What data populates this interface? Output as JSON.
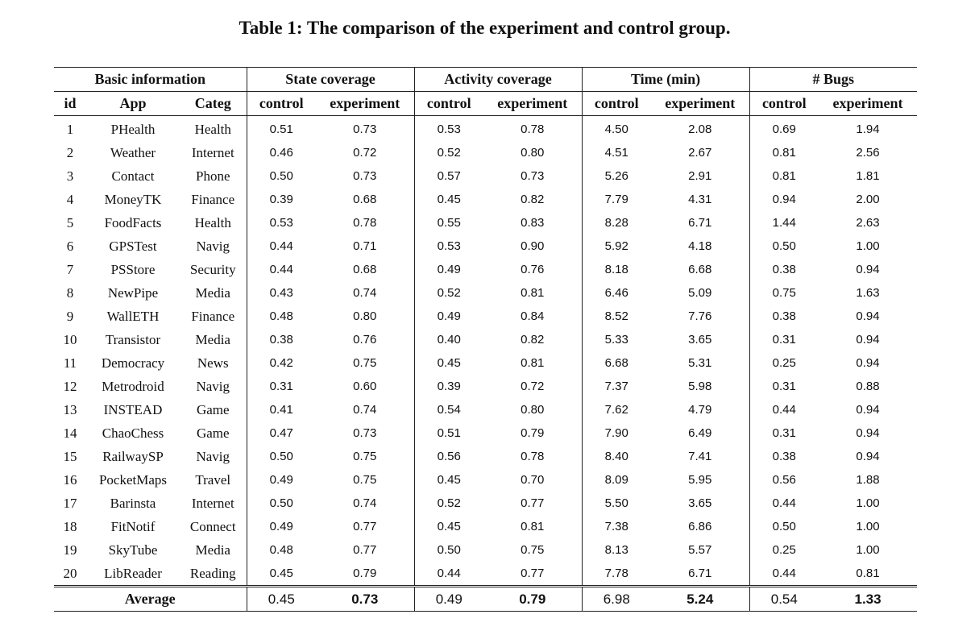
{
  "caption": "Table 1: The comparison of the experiment and control group.",
  "group_headers": {
    "basic": "Basic information",
    "state": "State coverage",
    "activity": "Activity coverage",
    "time": "Time (min)",
    "bugs": "# Bugs"
  },
  "sub_headers": {
    "id": "id",
    "app": "App",
    "categ": "Categ",
    "state_control": "control",
    "state_experiment": "experiment",
    "activity_control": "control",
    "activity_experiment": "experiment",
    "time_control": "control",
    "time_experiment": "experiment",
    "bugs_control": "control",
    "bugs_experiment": "experiment"
  },
  "rows": [
    {
      "id": "1",
      "app": "PHealth",
      "categ": "Health",
      "sc": "0.51",
      "se": "0.73",
      "ac": "0.53",
      "ae": "0.78",
      "tc": "4.50",
      "te": "2.08",
      "bc": "0.69",
      "be": "1.94"
    },
    {
      "id": "2",
      "app": "Weather",
      "categ": "Internet",
      "sc": "0.46",
      "se": "0.72",
      "ac": "0.52",
      "ae": "0.80",
      "tc": "4.51",
      "te": "2.67",
      "bc": "0.81",
      "be": "2.56"
    },
    {
      "id": "3",
      "app": "Contact",
      "categ": "Phone",
      "sc": "0.50",
      "se": "0.73",
      "ac": "0.57",
      "ae": "0.73",
      "tc": "5.26",
      "te": "2.91",
      "bc": "0.81",
      "be": "1.81"
    },
    {
      "id": "4",
      "app": "MoneyTK",
      "categ": "Finance",
      "sc": "0.39",
      "se": "0.68",
      "ac": "0.45",
      "ae": "0.82",
      "tc": "7.79",
      "te": "4.31",
      "bc": "0.94",
      "be": "2.00"
    },
    {
      "id": "5",
      "app": "FoodFacts",
      "categ": "Health",
      "sc": "0.53",
      "se": "0.78",
      "ac": "0.55",
      "ae": "0.83",
      "tc": "8.28",
      "te": "6.71",
      "bc": "1.44",
      "be": "2.63"
    },
    {
      "id": "6",
      "app": "GPSTest",
      "categ": "Navig",
      "sc": "0.44",
      "se": "0.71",
      "ac": "0.53",
      "ae": "0.90",
      "tc": "5.92",
      "te": "4.18",
      "bc": "0.50",
      "be": "1.00"
    },
    {
      "id": "7",
      "app": "PSStore",
      "categ": "Security",
      "sc": "0.44",
      "se": "0.68",
      "ac": "0.49",
      "ae": "0.76",
      "tc": "8.18",
      "te": "6.68",
      "bc": "0.38",
      "be": "0.94"
    },
    {
      "id": "8",
      "app": "NewPipe",
      "categ": "Media",
      "sc": "0.43",
      "se": "0.74",
      "ac": "0.52",
      "ae": "0.81",
      "tc": "6.46",
      "te": "5.09",
      "bc": "0.75",
      "be": "1.63"
    },
    {
      "id": "9",
      "app": "WallETH",
      "categ": "Finance",
      "sc": "0.48",
      "se": "0.80",
      "ac": "0.49",
      "ae": "0.84",
      "tc": "8.52",
      "te": "7.76",
      "bc": "0.38",
      "be": "0.94"
    },
    {
      "id": "10",
      "app": "Transistor",
      "categ": "Media",
      "sc": "0.38",
      "se": "0.76",
      "ac": "0.40",
      "ae": "0.82",
      "tc": "5.33",
      "te": "3.65",
      "bc": "0.31",
      "be": "0.94"
    },
    {
      "id": "11",
      "app": "Democracy",
      "categ": "News",
      "sc": "0.42",
      "se": "0.75",
      "ac": "0.45",
      "ae": "0.81",
      "tc": "6.68",
      "te": "5.31",
      "bc": "0.25",
      "be": "0.94"
    },
    {
      "id": "12",
      "app": "Metrodroid",
      "categ": "Navig",
      "sc": "0.31",
      "se": "0.60",
      "ac": "0.39",
      "ae": "0.72",
      "tc": "7.37",
      "te": "5.98",
      "bc": "0.31",
      "be": "0.88"
    },
    {
      "id": "13",
      "app": "INSTEAD",
      "categ": "Game",
      "sc": "0.41",
      "se": "0.74",
      "ac": "0.54",
      "ae": "0.80",
      "tc": "7.62",
      "te": "4.79",
      "bc": "0.44",
      "be": "0.94"
    },
    {
      "id": "14",
      "app": "ChaoChess",
      "categ": "Game",
      "sc": "0.47",
      "se": "0.73",
      "ac": "0.51",
      "ae": "0.79",
      "tc": "7.90",
      "te": "6.49",
      "bc": "0.31",
      "be": "0.94"
    },
    {
      "id": "15",
      "app": "RailwaySP",
      "categ": "Navig",
      "sc": "0.50",
      "se": "0.75",
      "ac": "0.56",
      "ae": "0.78",
      "tc": "8.40",
      "te": "7.41",
      "bc": "0.38",
      "be": "0.94"
    },
    {
      "id": "16",
      "app": "PocketMaps",
      "categ": "Travel",
      "sc": "0.49",
      "se": "0.75",
      "ac": "0.45",
      "ae": "0.70",
      "tc": "8.09",
      "te": "5.95",
      "bc": "0.56",
      "be": "1.88"
    },
    {
      "id": "17",
      "app": "Barinsta",
      "categ": "Internet",
      "sc": "0.50",
      "se": "0.74",
      "ac": "0.52",
      "ae": "0.77",
      "tc": "5.50",
      "te": "3.65",
      "bc": "0.44",
      "be": "1.00"
    },
    {
      "id": "18",
      "app": "FitNotif",
      "categ": "Connect",
      "sc": "0.49",
      "se": "0.77",
      "ac": "0.45",
      "ae": "0.81",
      "tc": "7.38",
      "te": "6.86",
      "bc": "0.50",
      "be": "1.00"
    },
    {
      "id": "19",
      "app": "SkyTube",
      "categ": "Media",
      "sc": "0.48",
      "se": "0.77",
      "ac": "0.50",
      "ae": "0.75",
      "tc": "8.13",
      "te": "5.57",
      "bc": "0.25",
      "be": "1.00"
    },
    {
      "id": "20",
      "app": "LibReader",
      "categ": "Reading",
      "sc": "0.45",
      "se": "0.79",
      "ac": "0.44",
      "ae": "0.77",
      "tc": "7.78",
      "te": "6.71",
      "bc": "0.44",
      "be": "0.81"
    }
  ],
  "average": {
    "label": "Average",
    "sc": "0.45",
    "se": "0.73",
    "ac": "0.49",
    "ae": "0.79",
    "tc": "6.98",
    "te": "5.24",
    "bc": "0.54",
    "be": "1.33"
  }
}
